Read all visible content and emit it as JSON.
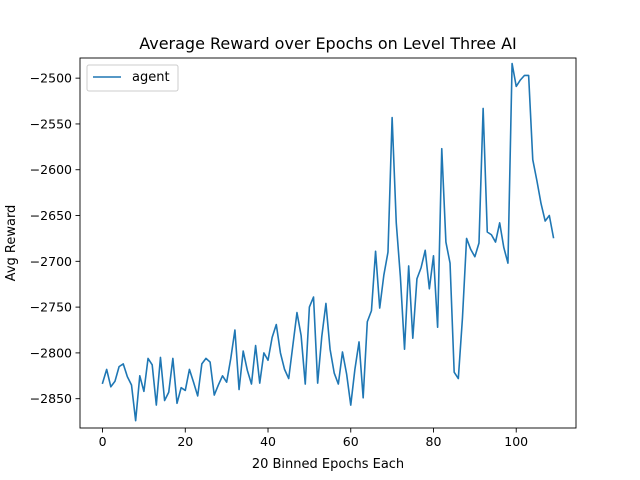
{
  "chart_data": {
    "type": "line",
    "title": "Average Reward over Epochs on Level Three AI",
    "xlabel": "20 Binned Epochs Each",
    "ylabel": "Avg Reward",
    "xlim": [
      -5.45,
      114.45
    ],
    "ylim": [
      -2882,
      -2478
    ],
    "xticks": [
      0,
      20,
      40,
      60,
      80,
      100
    ],
    "yticks": [
      -2850,
      -2800,
      -2750,
      -2700,
      -2650,
      -2600,
      -2550,
      -2500
    ],
    "grid": false,
    "legend": "top-left",
    "line_color": "#1f77b4",
    "series": [
      {
        "name": "agent",
        "values": [
          -2833,
          -2818,
          -2837,
          -2831,
          -2815,
          -2812,
          -2826,
          -2835,
          -2874,
          -2825,
          -2842,
          -2806,
          -2813,
          -2857,
          -2805,
          -2852,
          -2843,
          -2806,
          -2855,
          -2838,
          -2841,
          -2818,
          -2832,
          -2847,
          -2812,
          -2806,
          -2810,
          -2846,
          -2835,
          -2825,
          -2832,
          -2806,
          -2775,
          -2840,
          -2798,
          -2819,
          -2834,
          -2792,
          -2833,
          -2800,
          -2808,
          -2783,
          -2769,
          -2800,
          -2818,
          -2828,
          -2792,
          -2756,
          -2781,
          -2834,
          -2750,
          -2739,
          -2833,
          -2782,
          -2746,
          -2796,
          -2822,
          -2834,
          -2799,
          -2823,
          -2857,
          -2818,
          -2788,
          -2849,
          -2766,
          -2754,
          -2689,
          -2751,
          -2715,
          -2690,
          -2543,
          -2658,
          -2717,
          -2796,
          -2705,
          -2784,
          -2719,
          -2707,
          -2688,
          -2730,
          -2694,
          -2772,
          -2577,
          -2679,
          -2702,
          -2821,
          -2828,
          -2762,
          -2675,
          -2687,
          -2695,
          -2680,
          -2533,
          -2668,
          -2671,
          -2679,
          -2658,
          -2685,
          -2702,
          -2484,
          -2509,
          -2502,
          -2497,
          -2497,
          -2589,
          -2612,
          -2637,
          -2656,
          -2650,
          -2674
        ]
      }
    ]
  }
}
